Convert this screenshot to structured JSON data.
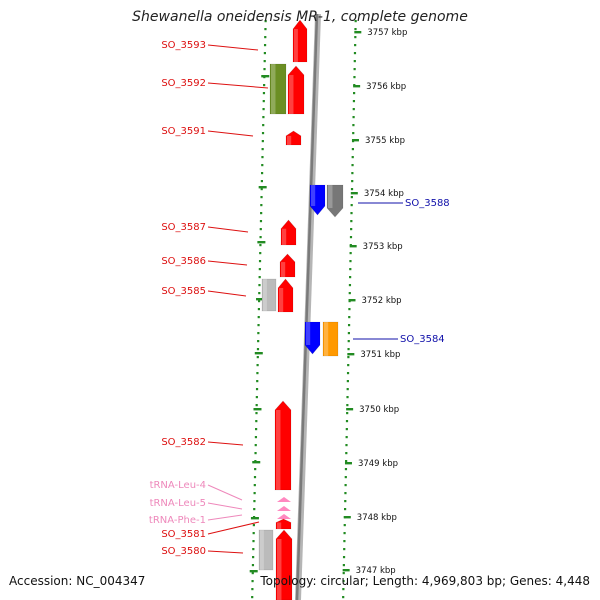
{
  "title": "Shewanella oneidensis MR-1, complete genome",
  "kbp_ticks": [
    {
      "label": "3757 kbp"
    },
    {
      "label": "3756 kbp"
    },
    {
      "label": "3755 kbp"
    },
    {
      "label": "3754 kbp"
    },
    {
      "label": "3753 kbp"
    },
    {
      "label": "3752 kbp"
    },
    {
      "label": "3751 kbp"
    },
    {
      "label": "3750 kbp"
    },
    {
      "label": "3749 kbp"
    },
    {
      "label": "3748 kbp"
    },
    {
      "label": "3747 kbp"
    }
  ],
  "left_labels": [
    {
      "text": "SO_3593",
      "color": "#dd1111"
    },
    {
      "text": "SO_3592",
      "color": "#dd1111"
    },
    {
      "text": "SO_3591",
      "color": "#dd1111"
    },
    {
      "text": "SO_3587",
      "color": "#dd1111"
    },
    {
      "text": "SO_3586",
      "color": "#dd1111"
    },
    {
      "text": "SO_3585",
      "color": "#dd1111"
    },
    {
      "text": "SO_3582",
      "color": "#dd1111"
    },
    {
      "text": "tRNA-Leu-4",
      "color": "#ee88bb"
    },
    {
      "text": "tRNA-Leu-5",
      "color": "#ee88bb"
    },
    {
      "text": "tRNA-Phe-1",
      "color": "#ee88bb"
    },
    {
      "text": "SO_3581",
      "color": "#dd1111"
    },
    {
      "text": "SO_3580",
      "color": "#dd1111"
    }
  ],
  "right_labels": [
    {
      "text": "SO_3588",
      "color": "#1111aa"
    },
    {
      "text": "SO_3584",
      "color": "#1111aa"
    }
  ],
  "colors": {
    "forward_gene": "#ff0000",
    "reverse_gene": "#0000ff",
    "trna": "#ff88c0",
    "olive": "#6b8e23",
    "gray": "#bbbbbb",
    "dark_gray": "#777777",
    "orange": "#ff9900",
    "dotted_guide": "#228b22",
    "backbone": "#909090"
  },
  "footer": {
    "accession": "Accession: NC_004347",
    "summary": "Topology: circular; Length: 4,969,803 bp; Genes: 4,448"
  }
}
